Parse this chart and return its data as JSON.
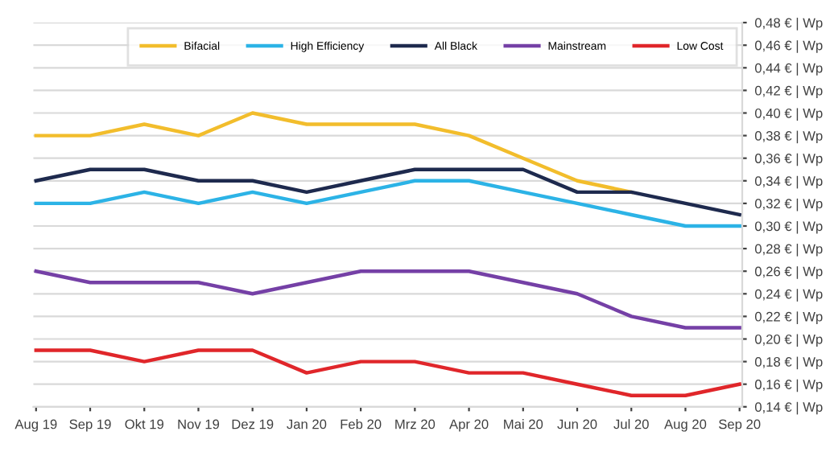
{
  "chart_data": {
    "type": "line",
    "categories": [
      "Aug 19",
      "Sep 19",
      "Okt 19",
      "Nov 19",
      "Dez 19",
      "Jan 20",
      "Feb 20",
      "Mrz 20",
      "Apr 20",
      "Mai 20",
      "Jun 20",
      "Jul 20",
      "Aug 20",
      "Sep 20"
    ],
    "series": [
      {
        "name": "Bifacial",
        "color": "#f2bd2c",
        "values": [
          0.38,
          0.38,
          0.39,
          0.38,
          0.4,
          0.39,
          0.39,
          0.39,
          0.38,
          0.36,
          0.34,
          0.33,
          null,
          null
        ]
      },
      {
        "name": "High Efficiency",
        "color": "#2cb3e6",
        "values": [
          0.32,
          0.32,
          0.33,
          0.32,
          0.33,
          0.32,
          0.33,
          0.34,
          0.34,
          0.33,
          0.32,
          0.31,
          0.3,
          0.3
        ]
      },
      {
        "name": "All Black",
        "color": "#1e2a4e",
        "values": [
          0.34,
          0.35,
          0.35,
          0.34,
          0.34,
          0.33,
          0.34,
          0.35,
          0.35,
          0.35,
          0.33,
          0.33,
          0.32,
          0.31
        ]
      },
      {
        "name": "Mainstream",
        "color": "#7540a6",
        "values": [
          0.26,
          0.25,
          0.25,
          0.25,
          0.24,
          0.25,
          0.26,
          0.26,
          0.26,
          0.25,
          0.24,
          0.22,
          0.21,
          0.21
        ]
      },
      {
        "name": "Low Cost",
        "color": "#e0262a",
        "values": [
          0.19,
          0.19,
          0.18,
          0.19,
          0.19,
          0.17,
          0.18,
          0.18,
          0.17,
          0.17,
          0.16,
          0.15,
          0.15,
          0.16
        ]
      }
    ],
    "ylim": [
      0.14,
      0.48
    ],
    "yticks": [
      {
        "value": 0.14,
        "label": "0,14 € | Wp"
      },
      {
        "value": 0.16,
        "label": "0,16 € | Wp"
      },
      {
        "value": 0.18,
        "label": "0,18 € | Wp"
      },
      {
        "value": 0.2,
        "label": "0,20 € | Wp"
      },
      {
        "value": 0.22,
        "label": "0,22 € | Wp"
      },
      {
        "value": 0.24,
        "label": "0,24 € | Wp"
      },
      {
        "value": 0.26,
        "label": "0,26 € | Wp"
      },
      {
        "value": 0.28,
        "label": "0,28 € | Wp"
      },
      {
        "value": 0.3,
        "label": "0,30 € | Wp"
      },
      {
        "value": 0.32,
        "label": "0,32 € | Wp"
      },
      {
        "value": 0.34,
        "label": "0,34 € | Wp"
      },
      {
        "value": 0.36,
        "label": "0,36 € | Wp"
      },
      {
        "value": 0.38,
        "label": "0,38 € | Wp"
      },
      {
        "value": 0.4,
        "label": "0,40 € | Wp"
      },
      {
        "value": 0.42,
        "label": "0,42 € | Wp"
      },
      {
        "value": 0.44,
        "label": "0,44 € | Wp"
      },
      {
        "value": 0.46,
        "label": "0,46 € | Wp"
      },
      {
        "value": 0.48,
        "label": "0,48 € | Wp"
      }
    ],
    "grid": "y",
    "legend": "top right",
    "marker": "none",
    "line_style": "solid"
  }
}
